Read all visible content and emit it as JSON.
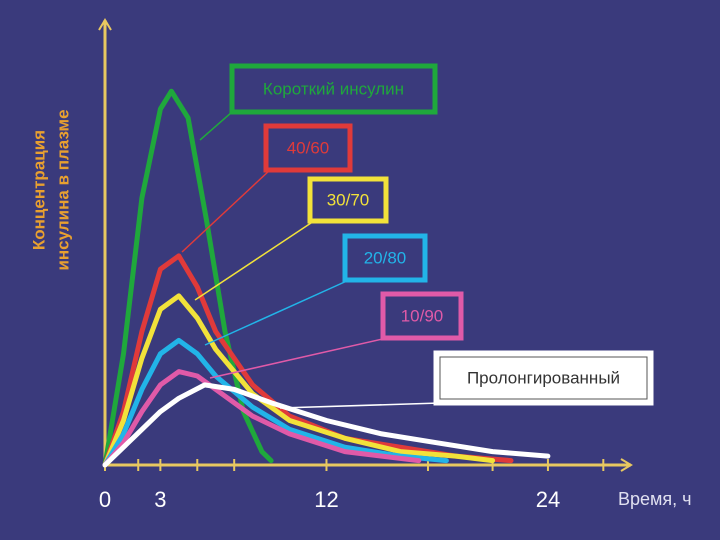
{
  "chart_data": {
    "type": "line",
    "y_label_lines": [
      "Концентрация",
      "инсулина в плазме"
    ],
    "x_label": "Время, ч",
    "xlim": [
      0,
      28.5
    ],
    "ylim": [
      0,
      100
    ],
    "xticks": [
      0,
      3,
      12,
      24
    ],
    "xticks_minor": [
      1.8,
      5,
      7,
      17.5,
      21,
      27
    ],
    "series": [
      {
        "name": "Короткий инсулин",
        "color": "#1fa83c",
        "x": [
          0,
          1,
          2,
          3,
          3.6,
          4.5,
          5.5,
          6.5,
          7.5,
          8.5,
          9
        ],
        "values": [
          0,
          25,
          60,
          80,
          84,
          78,
          55,
          30,
          12,
          3,
          1
        ]
      },
      {
        "name": "40/60",
        "color": "#e03a3a",
        "x": [
          0,
          1,
          2,
          3,
          4,
          5,
          6,
          8,
          10,
          13,
          16,
          19,
          22
        ],
        "values": [
          0,
          12,
          30,
          44,
          47,
          40,
          30,
          18,
          11,
          6,
          4,
          2,
          1
        ]
      },
      {
        "name": "30/70",
        "color": "#f2e23a",
        "x": [
          0,
          1,
          2,
          3,
          4,
          5,
          6,
          8,
          10,
          13,
          16,
          19,
          21
        ],
        "values": [
          0,
          10,
          24,
          35,
          38,
          33,
          26,
          16,
          10,
          6,
          3,
          2,
          1
        ]
      },
      {
        "name": "20/80",
        "color": "#22b4e8",
        "x": [
          0,
          1,
          2,
          3,
          4,
          5,
          6,
          8,
          10,
          13,
          16,
          18.5
        ],
        "values": [
          0,
          7,
          17,
          25,
          28,
          25,
          20,
          13,
          8,
          4,
          2,
          1
        ]
      },
      {
        "name": "10/90",
        "color": "#e05aa8",
        "x": [
          0,
          1,
          2,
          3,
          4,
          5,
          6,
          8,
          10,
          13,
          15,
          17
        ],
        "values": [
          0,
          5,
          12,
          18,
          21,
          20,
          17,
          11,
          7,
          3,
          2,
          1
        ]
      },
      {
        "name": "Пролонгированный",
        "color": "#ffffff",
        "x": [
          0,
          1,
          2,
          3,
          4,
          5.4,
          7,
          9,
          12,
          15,
          18,
          21,
          24
        ],
        "values": [
          0,
          4,
          8,
          12,
          15,
          18,
          17,
          14,
          10,
          7,
          5,
          3,
          2
        ]
      }
    ]
  }
}
